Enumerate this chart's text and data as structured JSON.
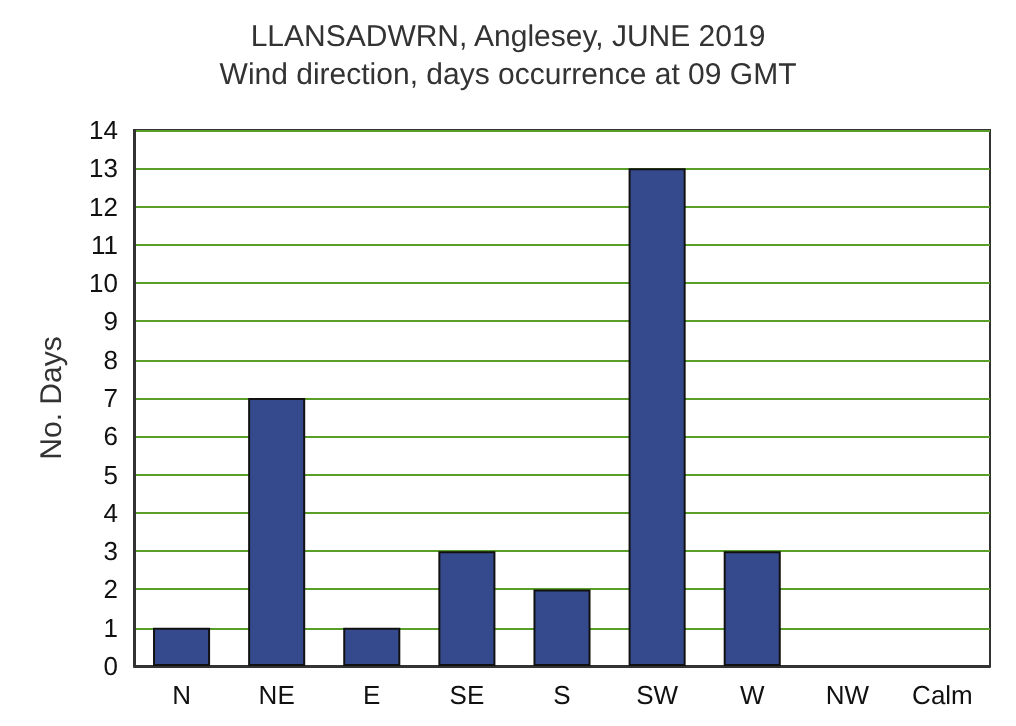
{
  "chart_data": {
    "type": "bar",
    "title": "LLANSADWRN, Anglesey, JUNE 2019",
    "subtitle": "Wind direction, days occurrence at 09 GMT",
    "ylabel": "No. Days",
    "categories": [
      "N",
      "NE",
      "E",
      "SE",
      "S",
      "SW",
      "W",
      "NW",
      "Calm"
    ],
    "values": [
      1,
      7,
      1,
      3,
      2,
      13,
      3,
      0,
      0
    ],
    "color": "#344a8c",
    "ylim": [
      0,
      14
    ],
    "yticks": [
      0,
      1,
      2,
      3,
      4,
      5,
      6,
      7,
      8,
      9,
      10,
      11,
      12,
      13,
      14
    ],
    "grid": "y"
  }
}
